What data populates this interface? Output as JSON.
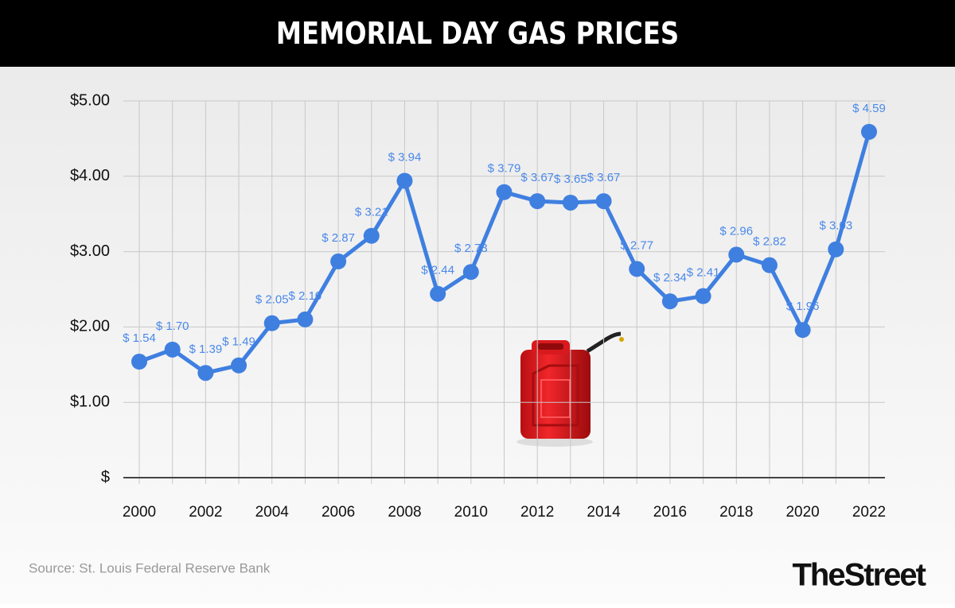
{
  "chart_data": {
    "type": "line",
    "title": "MEMORIAL DAY GAS PRICES",
    "source": "Source: St. Louis Federal Reserve Bank",
    "brand": "TheStreet",
    "categories": [
      "2000",
      null,
      "2002",
      null,
      "2004",
      null,
      "2006",
      null,
      "2008",
      null,
      "2010",
      null,
      "2012",
      null,
      "2014",
      null,
      "2016",
      null,
      "2018",
      null,
      "2020",
      null,
      "2022"
    ],
    "values": [
      1.54,
      1.7,
      1.39,
      1.49,
      2.05,
      2.1,
      2.87,
      3.21,
      3.94,
      2.44,
      2.73,
      3.79,
      3.67,
      3.65,
      3.67,
      2.77,
      2.34,
      2.41,
      2.96,
      2.82,
      1.96,
      3.03,
      4.59
    ],
    "value_labels": [
      "$ 1.54",
      "$ 1.70",
      "$ 1.39",
      "$ 1.49",
      "$ 2.05",
      "$ 2.10",
      "$ 2.87",
      "$ 3.21",
      "$ 3.94",
      "$ 2.44",
      "$ 2.73",
      "$ 3.79",
      "$ 3.67",
      "$ 3.65",
      "$ 3.67",
      "$ 2.77",
      "$ 2.34",
      "$ 2.41",
      "$ 2.96",
      "$ 2.82",
      "$ 1.96",
      "$ 3.03",
      "$ 4.59"
    ],
    "color": "#3f7fe0",
    "label_color": "#4a88ea",
    "ylim": [
      0,
      5
    ],
    "yticks": [
      {
        "value": 0,
        "label": "$"
      },
      {
        "value": 1,
        "label": "$1.00"
      },
      {
        "value": 2,
        "label": "$2.00"
      },
      {
        "value": 3,
        "label": "$3.00"
      },
      {
        "value": 4,
        "label": "$4.00"
      },
      {
        "value": 5,
        "label": "$5.00"
      }
    ],
    "grid": true
  }
}
